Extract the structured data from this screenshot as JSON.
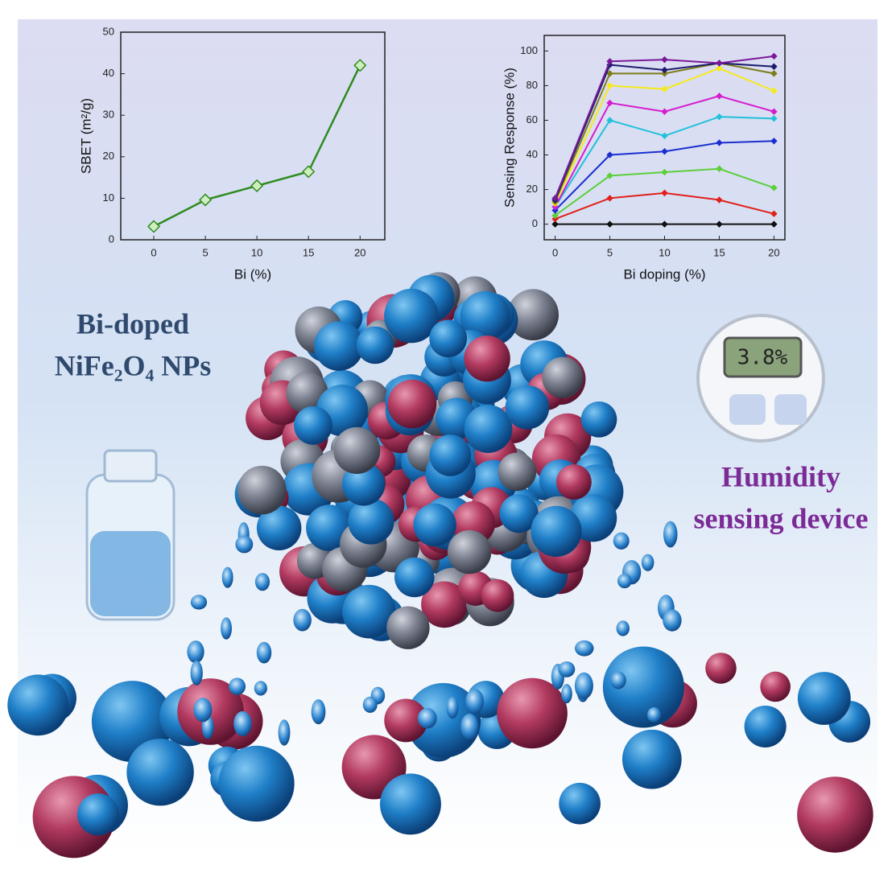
{
  "chart_data": [
    {
      "type": "line",
      "x_label": "Bi (%)",
      "y_label": "SBET (m²/g)",
      "x": [
        0,
        5,
        10,
        15,
        20
      ],
      "values": [
        3.2,
        9.6,
        13,
        16.4,
        42
      ],
      "color": "#2e8b1e",
      "xlim": [
        -3.2,
        22.4
      ],
      "xticks": [
        0,
        5,
        10,
        15,
        20
      ],
      "ylim": [
        0,
        50
      ],
      "yticks": [
        0,
        10,
        20,
        30,
        40,
        50
      ]
    },
    {
      "type": "line",
      "x_label": "Bi doping (%)",
      "y_label": "Sensing Response (%)",
      "x": [
        0,
        5,
        10,
        15,
        20
      ],
      "series": [
        {
          "color": "#111111",
          "values": [
            0,
            0,
            0,
            0,
            0
          ]
        },
        {
          "color": "#e0201b",
          "values": [
            3,
            15,
            18,
            14,
            6
          ]
        },
        {
          "color": "#5ccf3a",
          "values": [
            5,
            28,
            30,
            32,
            21
          ]
        },
        {
          "color": "#1a2fd0",
          "values": [
            8,
            40,
            42,
            47,
            48
          ]
        },
        {
          "color": "#22c1d9",
          "values": [
            10,
            60,
            51,
            62,
            61
          ]
        },
        {
          "color": "#d51dcf",
          "values": [
            10,
            70,
            65,
            74,
            65
          ]
        },
        {
          "color": "#f4ea1a",
          "values": [
            12,
            80,
            78,
            90,
            77
          ]
        },
        {
          "color": "#7d7d1a",
          "values": [
            13,
            87,
            87,
            93,
            87
          ]
        },
        {
          "color": "#1c1c6e",
          "values": [
            14,
            92,
            89,
            93,
            91
          ]
        },
        {
          "color": "#7a1a9a",
          "values": [
            15,
            94,
            95,
            93,
            97
          ]
        }
      ],
      "xlim": [
        -1,
        21
      ],
      "xticks": [
        0,
        5,
        10,
        15,
        20
      ],
      "ylim": [
        -9,
        109
      ],
      "yticks": [
        0,
        20,
        40,
        60,
        80,
        100
      ]
    }
  ],
  "texts": {
    "material_line1": "Bi-doped",
    "material_line2": "NiFe₂O₄ NPs",
    "device_line1": "Humidity",
    "device_line2": "sensing device",
    "display": "3.8%"
  }
}
